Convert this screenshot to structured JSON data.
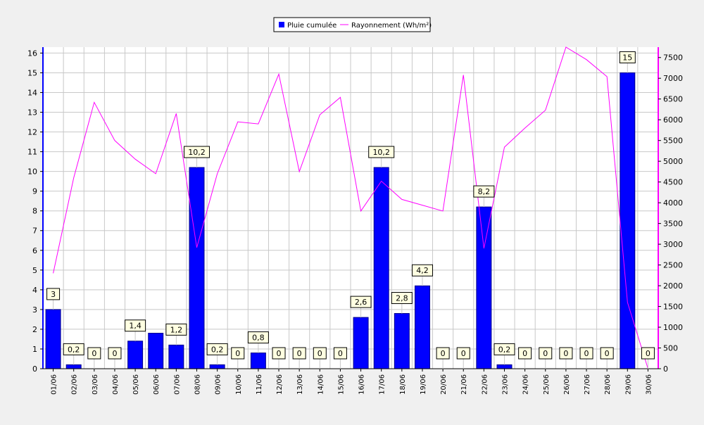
{
  "chart_data": {
    "type": "bar",
    "categories": [
      "01/06",
      "02/06",
      "03/06",
      "04/06",
      "05/06",
      "06/06",
      "07/06",
      "08/06",
      "09/06",
      "10/06",
      "11/06",
      "12/06",
      "13/06",
      "14/06",
      "15/06",
      "16/06",
      "17/06",
      "18/06",
      "19/06",
      "20/06",
      "21/06",
      "22/06",
      "23/06",
      "24/06",
      "25/06",
      "26/06",
      "27/06",
      "28/06",
      "29/06",
      "30/06"
    ],
    "series": [
      {
        "name": "Pluie cumulée",
        "type": "bar",
        "axis": "left",
        "color": "#0000ff",
        "values": [
          3,
          0.2,
          0,
          0,
          1.4,
          1.8,
          1.2,
          10.2,
          0.2,
          0,
          0.8,
          0,
          0,
          0,
          0,
          2.6,
          10.2,
          2.8,
          4.2,
          0,
          0,
          8.2,
          0.2,
          0,
          0,
          0,
          0,
          0,
          15,
          0
        ],
        "data_labels": [
          "3",
          "0,2",
          "0",
          "0",
          "1,4",
          null,
          "1,2",
          "10,2",
          "0,2",
          "0",
          "0,8",
          "0",
          "0",
          "0",
          "0",
          "2,6",
          "10,2",
          "2,8",
          "4,2",
          "0",
          "0",
          "8,2",
          "0,2",
          "0",
          "0",
          "0",
          "0",
          "0",
          "15",
          "0"
        ]
      },
      {
        "name": "Rayonnement (Wh/m²)",
        "type": "line",
        "axis": "right",
        "color": "#ff00ff",
        "values": [
          2300,
          4600,
          6420,
          5500,
          5050,
          4700,
          6150,
          2920,
          4700,
          5950,
          5900,
          7100,
          4750,
          6120,
          6540,
          3800,
          4520,
          4080,
          3940,
          3800,
          7080,
          2900,
          5340,
          5800,
          6230,
          7750,
          7450,
          7040,
          1600,
          0
        ]
      }
    ],
    "y_left": {
      "lim": [
        0,
        16.3
      ],
      "ticks": [
        "0",
        "1",
        "2",
        "3",
        "4",
        "5",
        "6",
        "7",
        "8",
        "9",
        "10",
        "11",
        "12",
        "13",
        "14",
        "15",
        "16"
      ]
    },
    "y_right": {
      "lim": [
        0,
        7750
      ],
      "ticks": [
        "0",
        "500",
        "1000",
        "1500",
        "2000",
        "2500",
        "3000",
        "3500",
        "4000",
        "4500",
        "5000",
        "5500",
        "6000",
        "6500",
        "7000",
        "7500"
      ]
    },
    "grid": true,
    "legend_position": "top-center",
    "title": "",
    "xlabel": "",
    "ylabel": ""
  }
}
